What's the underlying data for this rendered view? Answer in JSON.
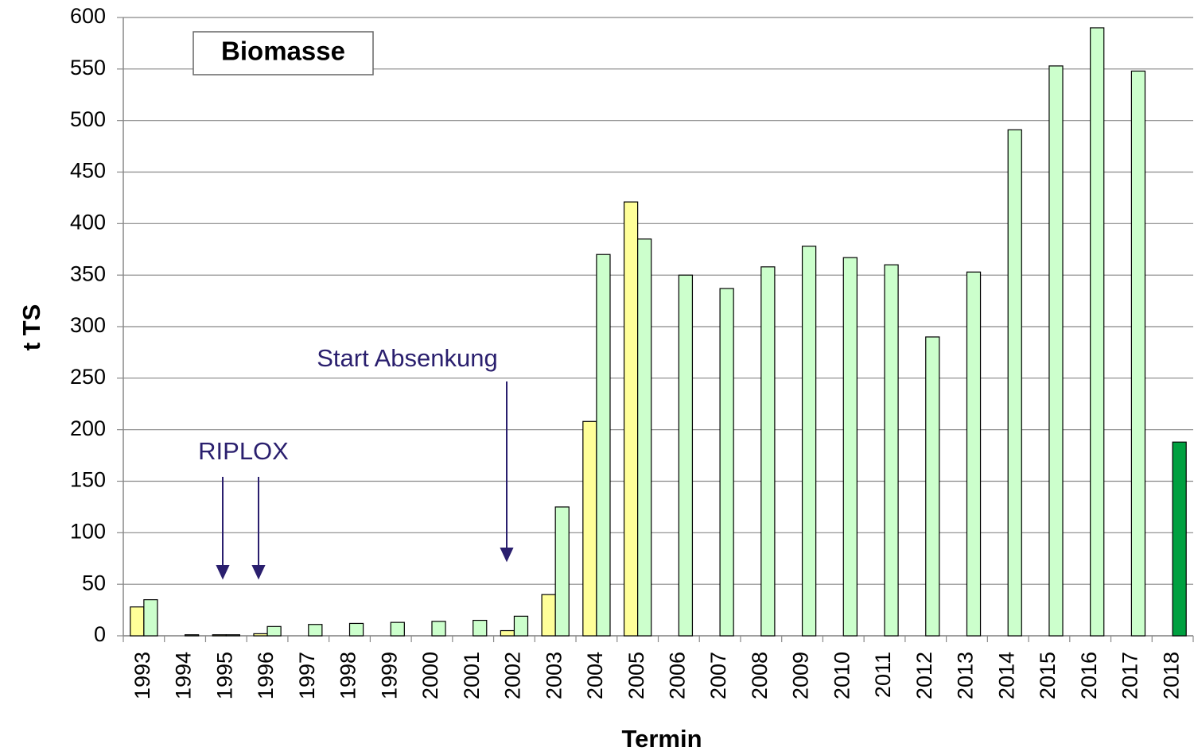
{
  "chart_data": {
    "type": "bar",
    "title": "Biomasse",
    "x_label": "Termin",
    "y_label": "t TS",
    "annotations": [
      "RIPLOX",
      "Start Absenkung"
    ],
    "categories": [
      "1993",
      "1994",
      "1995",
      "1996",
      "1997",
      "1998",
      "1999",
      "2000",
      "2001",
      "2002",
      "2003",
      "2004",
      "2005",
      "2006",
      "2007",
      "2008",
      "2009",
      "2010",
      "2011",
      "2012",
      "2013",
      "2014",
      "2015",
      "2016",
      "2017",
      "2018"
    ],
    "series": [
      {
        "color": "#ffff99",
        "values": [
          28,
          null,
          1,
          2,
          null,
          null,
          null,
          null,
          null,
          5,
          40,
          208,
          421,
          null,
          null,
          null,
          null,
          null,
          null,
          null,
          null,
          null,
          null,
          null,
          null,
          null
        ]
      },
      {
        "color": "#ccffcc",
        "values": [
          35,
          1,
          1,
          9,
          11,
          12,
          13,
          14,
          15,
          19,
          125,
          370,
          385,
          350,
          337,
          358,
          378,
          367,
          360,
          290,
          353,
          491,
          553,
          590,
          548,
          null
        ]
      },
      {
        "color": "#00a040",
        "values": [
          null,
          null,
          null,
          null,
          null,
          null,
          null,
          null,
          null,
          null,
          null,
          null,
          null,
          null,
          null,
          null,
          null,
          null,
          null,
          null,
          null,
          null,
          null,
          null,
          null,
          188
        ]
      }
    ],
    "ylim": [
      0,
      600
    ],
    "yticks": [
      0,
      50,
      100,
      150,
      200,
      250,
      300,
      350,
      400,
      450,
      500,
      550,
      600
    ],
    "grid": true
  }
}
